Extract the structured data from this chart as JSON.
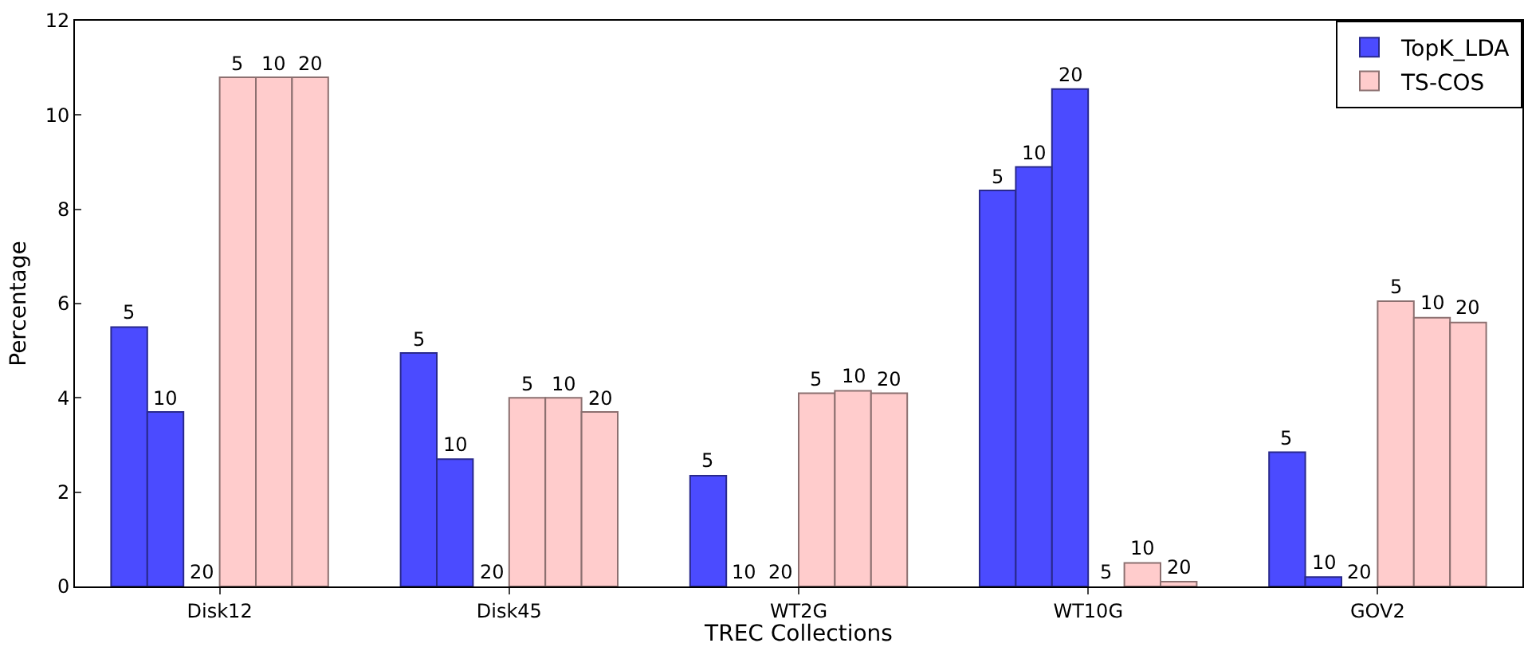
{
  "chart_data": {
    "type": "bar",
    "xlabel": "TREC Collections",
    "ylabel": "Percentage",
    "categories": [
      "Disk12",
      "Disk45",
      "WT2G",
      "WT10G",
      "GOV2"
    ],
    "series": [
      {
        "name": "TopK_LDA",
        "color": "#4b4bff",
        "values": [
          5.5,
          4.95,
          2.35,
          8.4,
          2.85
        ]
      },
      {
        "color": "#4b4bff",
        "values": [
          3.7,
          2.7,
          0,
          8.9,
          0.2
        ]
      },
      {
        "color": "#4b4bff",
        "values": [
          0,
          0,
          0,
          10.55,
          0
        ]
      },
      {
        "name": "TS-COS",
        "color": "#ffcccc",
        "values": [
          10.8,
          4.0,
          4.1,
          0,
          6.05
        ]
      },
      {
        "color": "#ffcccc",
        "values": [
          10.8,
          4.0,
          4.15,
          0.5,
          5.7
        ]
      },
      {
        "color": "#ffcccc",
        "values": [
          10.8,
          3.7,
          4.1,
          0.1,
          5.6
        ]
      }
    ],
    "annotations": [
      "5",
      "10",
      "20",
      "5",
      "10",
      "20",
      "5",
      "10",
      "20",
      "5",
      "10",
      "20",
      "5",
      "10",
      "20",
      "5",
      "10",
      "20",
      "5",
      "10",
      "20",
      "5",
      "10",
      "20",
      "5",
      "10",
      "20",
      "5",
      "10",
      "20"
    ],
    "ylim": [
      0,
      12
    ],
    "yticks": [
      0,
      2,
      4,
      6,
      8,
      10,
      12
    ],
    "grid": false,
    "legend": "top right"
  }
}
